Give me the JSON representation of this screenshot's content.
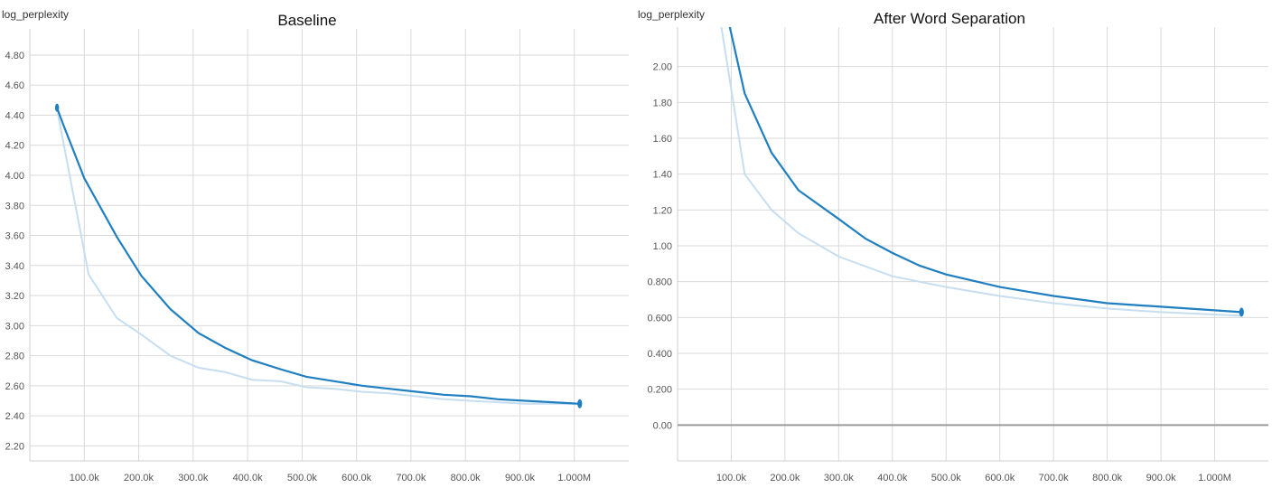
{
  "chart_data": [
    {
      "type": "line",
      "title": "Baseline",
      "ylabel": "log_perplexity",
      "xlabel": "",
      "xlim": [
        0,
        1100000
      ],
      "ylim": [
        2.1,
        4.95
      ],
      "x_ticks": [
        100000,
        200000,
        300000,
        400000,
        500000,
        600000,
        700000,
        800000,
        900000,
        1000000
      ],
      "x_tick_labels": [
        "100.0k",
        "200.0k",
        "300.0k",
        "400.0k",
        "500.0k",
        "600.0k",
        "700.0k",
        "800.0k",
        "900.0k",
        "1.000M"
      ],
      "y_ticks": [
        2.2,
        2.4,
        2.6,
        2.8,
        3.0,
        3.2,
        3.4,
        3.6,
        3.8,
        4.0,
        4.2,
        4.4,
        4.6,
        4.8
      ],
      "y_tick_labels": [
        "2.20",
        "2.40",
        "2.60",
        "2.80",
        "3.00",
        "3.20",
        "3.40",
        "3.60",
        "3.80",
        "4.00",
        "4.20",
        "4.40",
        "4.60",
        "4.80"
      ],
      "grid": true,
      "series": [
        {
          "role": "raw",
          "color": "#c6def0",
          "x": [
            50000,
            108000,
            160000,
            205000,
            258000,
            310000,
            360000,
            408000,
            460000,
            508000,
            560000,
            610000,
            660000,
            710000,
            760000,
            810000,
            860000,
            910000,
            960000,
            1010000
          ],
          "values": [
            4.44,
            3.34,
            3.05,
            2.94,
            2.8,
            2.72,
            2.69,
            2.64,
            2.63,
            2.59,
            2.58,
            2.56,
            2.55,
            2.53,
            2.51,
            2.5,
            2.49,
            2.48,
            2.48,
            2.48
          ]
        },
        {
          "role": "smoothed",
          "color": "#1f7fc0",
          "x": [
            50000,
            60000,
            100000,
            160000,
            205000,
            258000,
            310000,
            360000,
            408000,
            460000,
            508000,
            560000,
            610000,
            660000,
            710000,
            760000,
            810000,
            860000,
            910000,
            960000,
            1010000
          ],
          "values": [
            4.45,
            4.35,
            3.98,
            3.59,
            3.33,
            3.11,
            2.95,
            2.85,
            2.77,
            2.71,
            2.66,
            2.63,
            2.6,
            2.58,
            2.56,
            2.54,
            2.53,
            2.51,
            2.5,
            2.49,
            2.48
          ]
        }
      ]
    },
    {
      "type": "line",
      "title": "After Word Separation",
      "ylabel": "log_perplexity",
      "xlabel": "",
      "xlim": [
        0,
        1100000
      ],
      "ylim": [
        -0.2,
        2.2
      ],
      "x_ticks": [
        100000,
        200000,
        300000,
        400000,
        500000,
        600000,
        700000,
        800000,
        900000,
        1000000
      ],
      "x_tick_labels": [
        "100.0k",
        "200.0k",
        "300.0k",
        "400.0k",
        "500.0k",
        "600.0k",
        "700.0k",
        "800.0k",
        "900.0k",
        "1.000M"
      ],
      "y_ticks": [
        0.0,
        0.2,
        0.4,
        0.6,
        0.8,
        1.0,
        1.2,
        1.4,
        1.6,
        1.8,
        2.0
      ],
      "y_tick_labels": [
        "0.00",
        "0.200",
        "0.400",
        "0.600",
        "0.800",
        "1.00",
        "1.20",
        "1.40",
        "1.60",
        "1.80",
        "2.00"
      ],
      "zero_line": true,
      "grid": true,
      "series": [
        {
          "role": "raw",
          "color": "#c6def0",
          "x": [
            80000,
            125000,
            175000,
            225000,
            300000,
            400000,
            500000,
            600000,
            700000,
            800000,
            900000,
            1050000
          ],
          "values": [
            2.25,
            1.4,
            1.2,
            1.07,
            0.94,
            0.83,
            0.77,
            0.72,
            0.68,
            0.65,
            0.63,
            0.61
          ]
        },
        {
          "role": "smoothed",
          "color": "#1f7fc0",
          "x": [
            95000,
            125000,
            175000,
            225000,
            300000,
            350000,
            400000,
            450000,
            500000,
            600000,
            700000,
            800000,
            900000,
            1050000
          ],
          "values": [
            2.25,
            1.85,
            1.52,
            1.31,
            1.15,
            1.04,
            0.96,
            0.89,
            0.84,
            0.77,
            0.72,
            0.68,
            0.66,
            0.63
          ]
        }
      ]
    }
  ]
}
